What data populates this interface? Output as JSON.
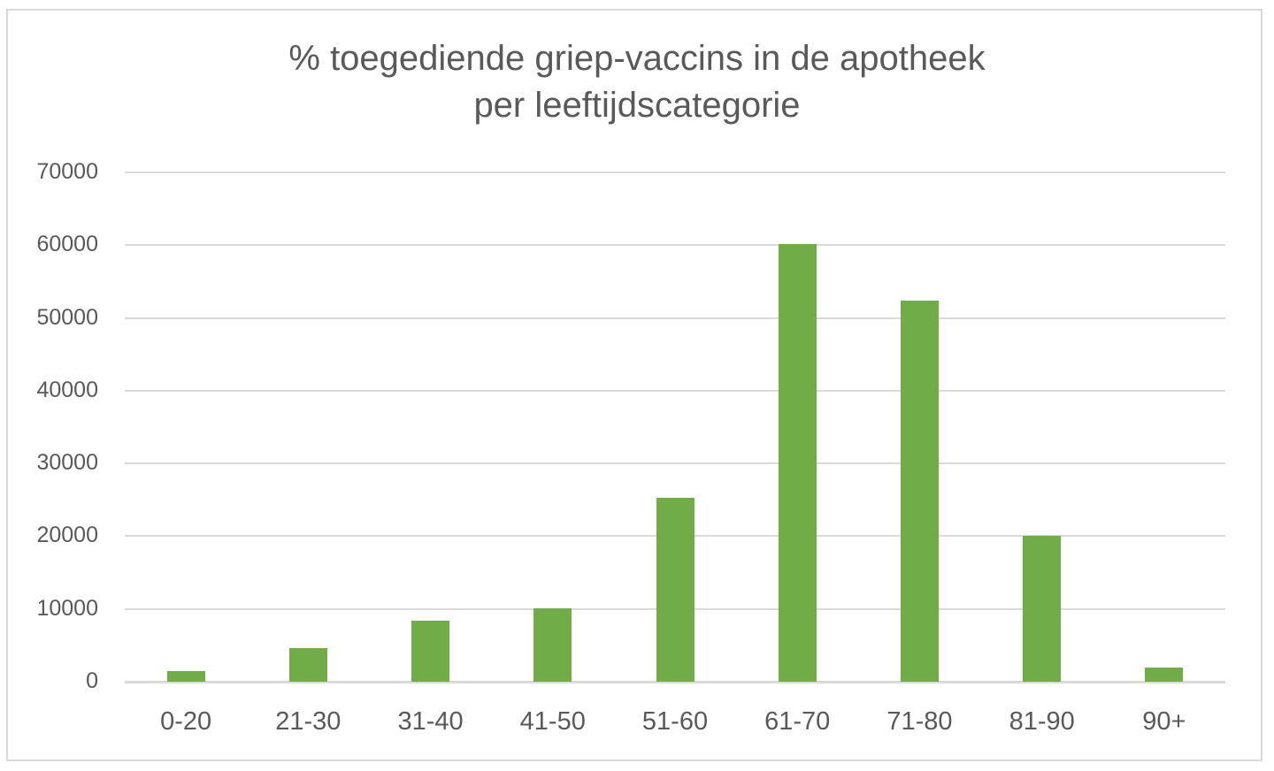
{
  "chart_data": {
    "type": "bar",
    "title": "% toegediende griep-vaccins in de apotheek per leeftijdscategorie",
    "title_lines": [
      "% toegediende griep-vaccins in de apotheek",
      "per leeftijdscategorie"
    ],
    "xlabel": "",
    "ylabel": "",
    "categories": [
      "0-20",
      "21-30",
      "31-40",
      "41-50",
      "51-60",
      "61-70",
      "71-80",
      "81-90",
      "90+"
    ],
    "values": [
      1400,
      4600,
      8400,
      10100,
      25300,
      60100,
      52400,
      20100,
      1900
    ],
    "ylim": [
      0,
      70000
    ],
    "yticks": [
      "0",
      "10000",
      "20000",
      "30000",
      "40000",
      "50000",
      "60000",
      "70000"
    ],
    "grid": true,
    "legend": "none",
    "bar_color": "#70ad47"
  }
}
